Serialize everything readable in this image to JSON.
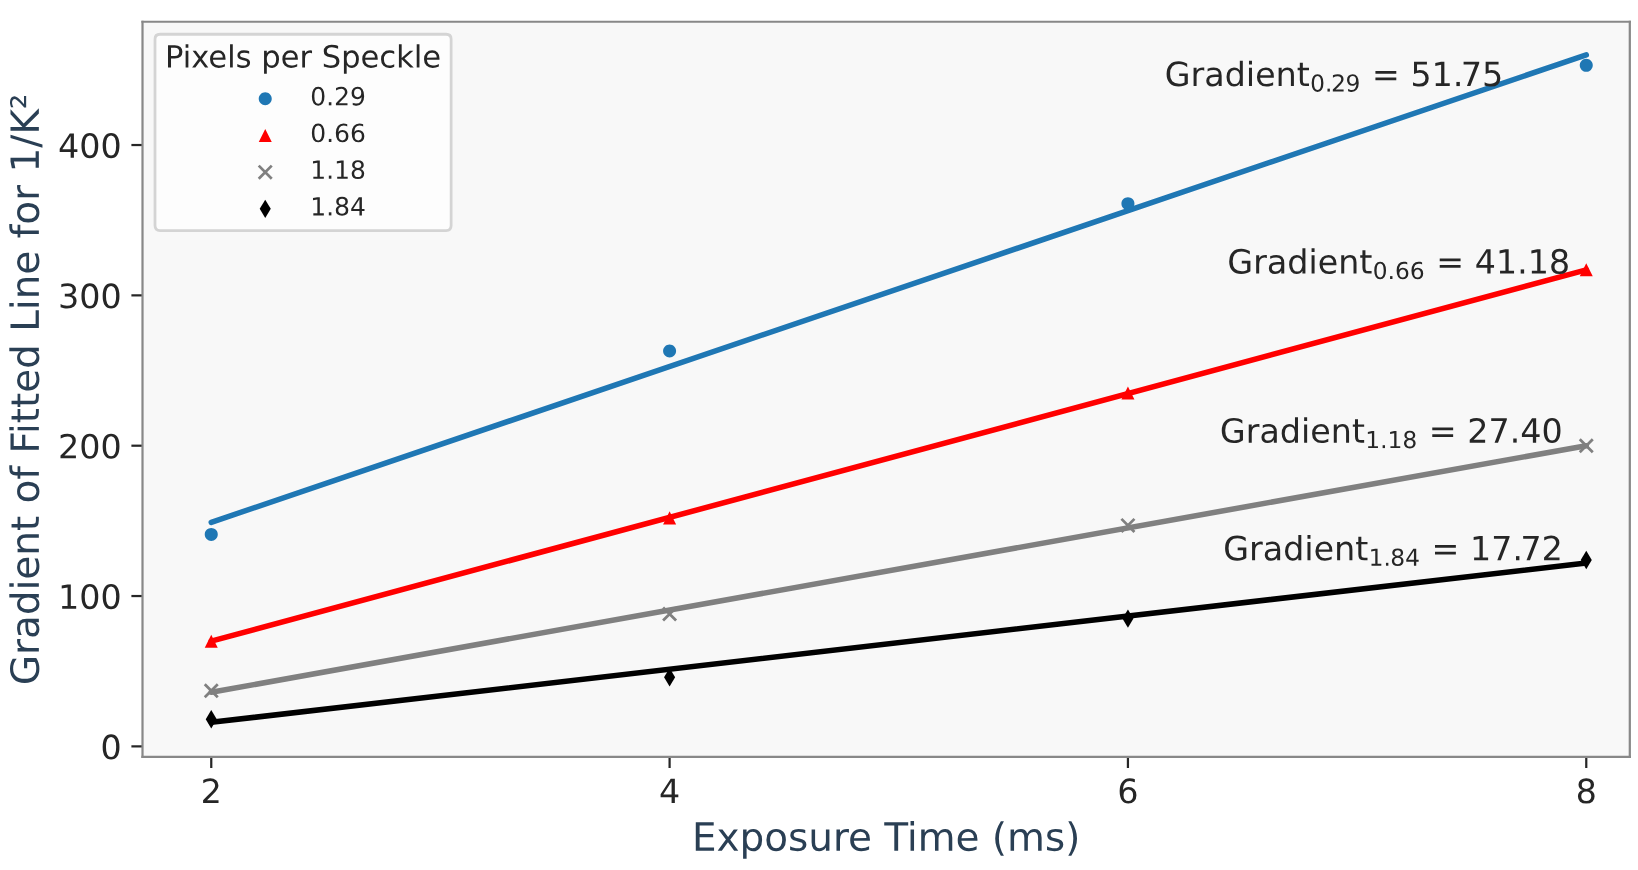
{
  "chart_data": {
    "type": "scatter",
    "xlabel": "Exposure Time (ms)",
    "ylabel": "Gradient of Fitted Line for 1/K²",
    "legend_title": "Pixels per Speckle",
    "legend": "top left",
    "grid": false,
    "xlim": [
      1.7,
      8.19
    ],
    "ylim": [
      -7,
      482
    ],
    "xticks": [
      2,
      4,
      6,
      8
    ],
    "yticks": [
      0,
      100,
      200,
      300,
      400
    ],
    "series": [
      {
        "name": "0.29",
        "marker": "circle",
        "color": "#1f77b4",
        "x": [
          2,
          4,
          6,
          8
        ],
        "values": [
          141,
          263,
          361,
          453
        ]
      },
      {
        "name": "0.66",
        "marker": "triangle",
        "color": "#ff0000",
        "x": [
          2,
          4,
          6,
          8
        ],
        "values": [
          70,
          152,
          235,
          317
        ]
      },
      {
        "name": "1.18",
        "marker": "cross",
        "color": "#808080",
        "x": [
          2,
          4,
          6,
          8
        ],
        "values": [
          37,
          88,
          147,
          200
        ]
      },
      {
        "name": "1.84",
        "marker": "diamond",
        "color": "#000000",
        "x": [
          2,
          4,
          6,
          8
        ],
        "values": [
          18,
          46,
          85,
          124
        ]
      },
      {
        "type": "line",
        "marker": "none",
        "line_style": "solid",
        "color": "#1f77b4",
        "x": [
          2,
          8
        ],
        "values": [
          149,
          460
        ]
      },
      {
        "type": "line",
        "marker": "none",
        "line_style": "solid",
        "color": "#ff0000",
        "x": [
          2,
          8
        ],
        "values": [
          70,
          317
        ]
      },
      {
        "type": "line",
        "marker": "none",
        "line_style": "solid",
        "color": "#808080",
        "x": [
          2,
          8
        ],
        "values": [
          36,
          200
        ]
      },
      {
        "type": "line",
        "marker": "none",
        "line_style": "solid",
        "color": "#000000",
        "x": [
          2,
          8
        ],
        "values": [
          16,
          122
        ]
      }
    ],
    "annotations": [
      "Gradient$_{0.29}$ = 51.75",
      "Gradient$_{0.66}$ = 41.18",
      "Gradient$_{1.18}$ = 27.40",
      "Gradient$_{1.84}$ = 17.72"
    ]
  }
}
